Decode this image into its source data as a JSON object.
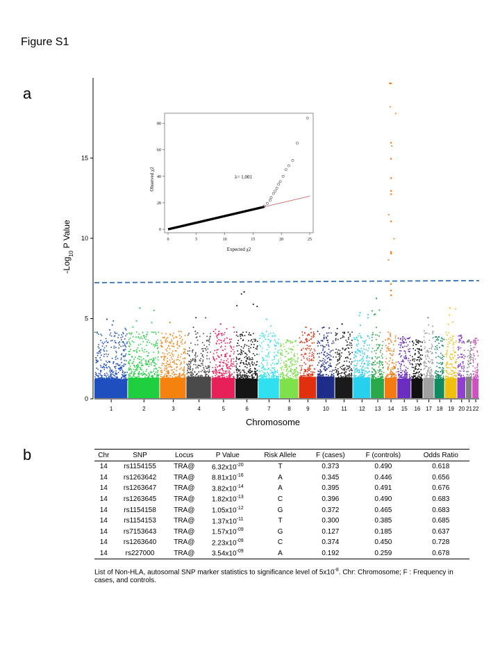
{
  "figure_title": "Figure S1",
  "panel_a_label": "a",
  "panel_b_label": "b",
  "chart_data": [
    {
      "type": "scatter",
      "title": "",
      "xlabel": "Chromosome",
      "ylabel": "-Log10 P Value",
      "ylabel_main": "-Log",
      "ylabel_sub": "10",
      "ylabel_rest": " P Value",
      "ylim": [
        0,
        20
      ],
      "yticks": [
        0,
        5,
        10,
        15
      ],
      "significance_line": 7.3,
      "chromosomes": [
        "1",
        "2",
        "3",
        "4",
        "5",
        "6",
        "7",
        "8",
        "9",
        "10",
        "11",
        "12",
        "13",
        "14",
        "15",
        "16",
        "17",
        "18",
        "19",
        "20",
        "21",
        "22"
      ],
      "colors": [
        "#1f4fbf",
        "#1fcf3f",
        "#f5820f",
        "#4a4a4a",
        "#e8205a",
        "#151515",
        "#30e0f0",
        "#7ee04a",
        "#e03010",
        "#1e2c8a",
        "#1a1a1a",
        "#28d0f0",
        "#2aa84a",
        "#f57a10",
        "#6a2ec0",
        "#101010",
        "#a0a0a0",
        "#108a60",
        "#f0c010",
        "#9040d0",
        "#808080",
        "#d050c0"
      ],
      "peaks": [
        5.0,
        5.7,
        4.8,
        5.1,
        4.7,
        6.7,
        5.0,
        3.7,
        4.5,
        4.5,
        4.7,
        5.4,
        6.3,
        19.7,
        3.9,
        3.7,
        5.1,
        3.9,
        5.7,
        4.0,
        3.7,
        3.8
      ],
      "chr14_hits": [
        19.7,
        16.0,
        15.0,
        13.8,
        13.0,
        12.8,
        11.1,
        9.2,
        9.1,
        7.2,
        6.8,
        6.5
      ]
    },
    {
      "type": "scatter",
      "title": "",
      "xlabel": "Expected χ2",
      "ylabel": "Observed χ2",
      "annotation": "λ= 1.001",
      "xlim": [
        0,
        25
      ],
      "ylim": [
        0,
        85
      ],
      "xticks": [
        0,
        5,
        10,
        15,
        20,
        25
      ],
      "yticks": [
        0,
        20,
        40,
        60,
        80
      ],
      "tail_points": [
        [
          17.0,
          17.5
        ],
        [
          17.5,
          19.5
        ],
        [
          18.0,
          22
        ],
        [
          18.2,
          24
        ],
        [
          18.6,
          27
        ],
        [
          18.9,
          29
        ],
        [
          19.2,
          31
        ],
        [
          19.5,
          34
        ],
        [
          19.8,
          36
        ],
        [
          20.3,
          40
        ],
        [
          20.8,
          45
        ],
        [
          21.3,
          48
        ],
        [
          22.0,
          52
        ],
        [
          22.8,
          65
        ],
        [
          24.6,
          84
        ]
      ]
    }
  ],
  "table": {
    "headers": [
      "Chr",
      "SNP",
      "Locus",
      "P Value",
      "Risk Allele",
      "F (cases)",
      "F (controls)",
      "Odds Ratio"
    ],
    "rows": [
      {
        "chr": "14",
        "snp": "rs1154155",
        "locus": "TRA@",
        "p_base": "6.32x10",
        "p_exp": "-20",
        "allele": "T",
        "f_cases": "0.373",
        "f_controls": "0.490",
        "or": "0.618"
      },
      {
        "chr": "14",
        "snp": "rs1263642",
        "locus": "TRA@",
        "p_base": "8.81x10",
        "p_exp": "-16",
        "allele": "A",
        "f_cases": "0.345",
        "f_controls": "0.446",
        "or": "0.656"
      },
      {
        "chr": "14",
        "snp": "rs1263647",
        "locus": "TRA@",
        "p_base": "3.82x10",
        "p_exp": "-14",
        "allele": "A",
        "f_cases": "0.395",
        "f_controls": "0.491",
        "or": "0.676"
      },
      {
        "chr": "14",
        "snp": "rs1263645",
        "locus": "TRA@",
        "p_base": "1.82x10",
        "p_exp": "-13",
        "allele": "C",
        "f_cases": "0.396",
        "f_controls": "0.490",
        "or": "0.683"
      },
      {
        "chr": "14",
        "snp": "rs1154158",
        "locus": "TRA@",
        "p_base": "1.05x10",
        "p_exp": "-12",
        "allele": "G",
        "f_cases": "0.372",
        "f_controls": "0.465",
        "or": "0.683"
      },
      {
        "chr": "14",
        "snp": "rs1154153",
        "locus": "TRA@",
        "p_base": "1.37x10",
        "p_exp": "-11",
        "allele": "T",
        "f_cases": "0.300",
        "f_controls": "0.385",
        "or": "0.685"
      },
      {
        "chr": "14",
        "snp": "rs7153643",
        "locus": "TRA@",
        "p_base": "1.57x10",
        "p_exp": "-09",
        "allele": "G",
        "f_cases": "0.127",
        "f_controls": "0.185",
        "or": "0.637"
      },
      {
        "chr": "14",
        "snp": "rs1263640",
        "locus": "TRA@",
        "p_base": "2.23x10",
        "p_exp": "-09",
        "allele": "C",
        "f_cases": "0.374",
        "f_controls": "0.450",
        "or": "0.728"
      },
      {
        "chr": "14",
        "snp": "rs227000",
        "locus": "TRA@",
        "p_base": "3.54x10",
        "p_exp": "-09",
        "allele": "A",
        "f_cases": "0.192",
        "f_controls": "0.259",
        "or": "0.678"
      }
    ]
  },
  "caption": {
    "part1": "List of Non-HLA, autosomal SNP marker statistics to significance level of 5x10",
    "exp": "-8",
    "part2": ". Chr: Chromosome; F : Frequency in cases, and controls."
  }
}
